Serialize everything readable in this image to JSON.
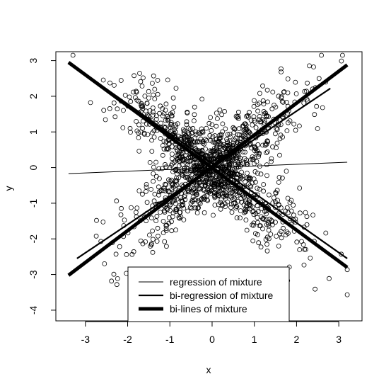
{
  "chart_data": {
    "type": "scatter",
    "title": "",
    "xlabel": "x",
    "ylabel": "y",
    "xlim": [
      -3.7,
      3.55
    ],
    "ylim": [
      -4.3,
      3.25
    ],
    "xticks": [
      -3,
      -2,
      -1,
      0,
      1,
      2,
      3
    ],
    "yticks": [
      -4,
      -3,
      -2,
      -1,
      0,
      1,
      2,
      3
    ],
    "grid": false,
    "legend_position": "bottom-center",
    "point_style": "open circle",
    "n_points": 1500,
    "point_clouds": [
      {
        "component": "positive slope",
        "slope": 0.88,
        "noise_sd": 0.55,
        "x_range": [
          -3.4,
          3.2
        ]
      },
      {
        "component": "negative slope",
        "slope": -0.88,
        "noise_sd": 0.55,
        "x_range": [
          -3.4,
          3.2
        ]
      }
    ],
    "series": [
      {
        "name": "regression of mixture",
        "line_style": "thin",
        "segments": [
          {
            "x": [
              -3.4,
              3.2
            ],
            "y": [
              -0.17,
              0.15
            ]
          }
        ]
      },
      {
        "name": "bi-regression of mixture",
        "line_style": "medium",
        "segments": [
          {
            "x": [
              -3.2,
              2.8
            ],
            "y": [
              -2.55,
              2.22
            ]
          },
          {
            "x": [
              -3.4,
              3.2
            ],
            "y": [
              2.95,
              -2.55
            ]
          }
        ]
      },
      {
        "name": "bi-lines of mixture",
        "line_style": "thick",
        "segments": [
          {
            "x": [
              -3.4,
              3.2
            ],
            "y": [
              -3.02,
              2.88
            ]
          },
          {
            "x": [
              -3.4,
              3.2
            ],
            "y": [
              2.95,
              -2.8
            ]
          }
        ]
      }
    ]
  }
}
